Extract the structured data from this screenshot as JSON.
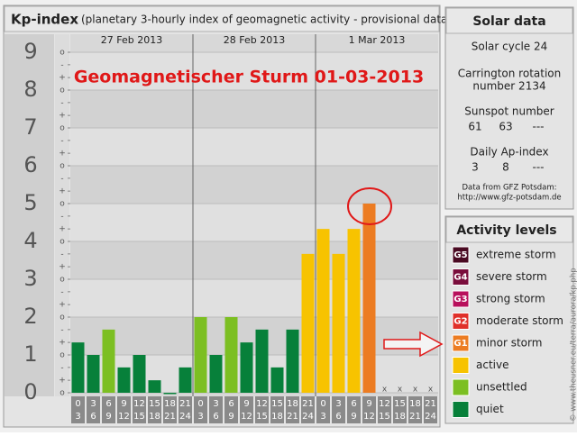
{
  "chart_data": {
    "type": "bar",
    "title": "Kp-index",
    "subtitle": "(planetary 3-hourly index of geomagnetic activity - provisional data)",
    "annotation": "Geomagnetischer Sturm 01-03-2013",
    "dates": [
      "27 Feb 2013",
      "28 Feb 2013",
      "1 Mar 2013"
    ],
    "categories": [
      [
        "0",
        "3"
      ],
      [
        "3",
        "6"
      ],
      [
        "6",
        "9"
      ],
      [
        "9",
        "12"
      ],
      [
        "12",
        "15"
      ],
      [
        "15",
        "18"
      ],
      [
        "18",
        "21"
      ],
      [
        "21",
        "24"
      ],
      [
        "0",
        "3"
      ],
      [
        "3",
        "6"
      ],
      [
        "6",
        "9"
      ],
      [
        "9",
        "12"
      ],
      [
        "12",
        "15"
      ],
      [
        "15",
        "18"
      ],
      [
        "18",
        "21"
      ],
      [
        "21",
        "24"
      ],
      [
        "0",
        "3"
      ],
      [
        "3",
        "6"
      ],
      [
        "6",
        "9"
      ],
      [
        "9",
        "12"
      ],
      [
        "12",
        "15"
      ],
      [
        "15",
        "18"
      ],
      [
        "18",
        "21"
      ],
      [
        "21",
        "24"
      ]
    ],
    "values": [
      1.33,
      1,
      1.67,
      0.67,
      1,
      0.33,
      0,
      0.67,
      2,
      1,
      2,
      1.33,
      1.67,
      0.67,
      1.67,
      3.67,
      4.33,
      3.67,
      4.33,
      5,
      null,
      null,
      null,
      null
    ],
    "colors": [
      "#07803a",
      "#07803a",
      "#7cbf22",
      "#07803a",
      "#07803a",
      "#07803a",
      "#07803a",
      "#07803a",
      "#7cbf22",
      "#07803a",
      "#7cbf22",
      "#07803a",
      "#07803a",
      "#07803a",
      "#07803a",
      "#f7c300",
      "#f7c300",
      "#f7c300",
      "#f7c300",
      "#ec7c22",
      null,
      null,
      null,
      null
    ],
    "missing_label": "x",
    "ylim": [
      0,
      9
    ],
    "yticks": [
      0,
      1,
      2,
      3,
      4,
      5,
      6,
      7,
      8,
      9
    ],
    "minor_ticks": [
      {
        "value": 0,
        "label": "o"
      },
      {
        "value": 0.33,
        "label": "+"
      },
      {
        "value": 0.67,
        "label": "-"
      },
      {
        "value": 1,
        "label": "o"
      },
      {
        "value": 1.33,
        "label": "+"
      },
      {
        "value": 1.67,
        "label": "-"
      },
      {
        "value": 2,
        "label": "o"
      },
      {
        "value": 2.33,
        "label": "+"
      },
      {
        "value": 2.67,
        "label": "-"
      },
      {
        "value": 3,
        "label": "o"
      },
      {
        "value": 3.33,
        "label": "+"
      },
      {
        "value": 3.67,
        "label": "-"
      },
      {
        "value": 4,
        "label": "o"
      },
      {
        "value": 4.33,
        "label": "+"
      },
      {
        "value": 4.67,
        "label": "-"
      },
      {
        "value": 5,
        "label": "o"
      },
      {
        "value": 5.33,
        "label": "+"
      },
      {
        "value": 5.67,
        "label": "-"
      },
      {
        "value": 6,
        "label": "o"
      },
      {
        "value": 6.33,
        "label": "+"
      },
      {
        "value": 6.67,
        "label": "-"
      },
      {
        "value": 7,
        "label": "o"
      },
      {
        "value": 7.33,
        "label": "+"
      },
      {
        "value": 7.67,
        "label": "-"
      },
      {
        "value": 8,
        "label": "o"
      },
      {
        "value": 8.33,
        "label": "+"
      },
      {
        "value": 8.67,
        "label": "-"
      },
      {
        "value": 9,
        "label": "o"
      }
    ]
  },
  "solar_data": {
    "title": "Solar data",
    "cycle": "Solar cycle 24",
    "carrington": [
      "Carrington rotation",
      "number 2134"
    ],
    "sunspot_label": "Sunspot number",
    "sunspot_values": [
      "61",
      "63",
      "---"
    ],
    "ap_label": "Daily Ap-index",
    "ap_values": [
      "3",
      "8",
      "---"
    ],
    "source": [
      "Data from GFZ Potsdam:",
      "http://www.gfz-potsdam.de"
    ]
  },
  "activity_levels": {
    "title": "Activity levels",
    "items": [
      {
        "badge": "G5",
        "name": "extreme storm",
        "color": "#4a0a22"
      },
      {
        "badge": "G4",
        "name": "severe storm",
        "color": "#7a0e3c"
      },
      {
        "badge": "G3",
        "name": "strong storm",
        "color": "#b8105c"
      },
      {
        "badge": "G2",
        "name": "moderate storm",
        "color": "#e0302a"
      },
      {
        "badge": "G1",
        "name": "minor storm",
        "color": "#ec7c22"
      },
      {
        "name": "active",
        "color": "#f7c300"
      },
      {
        "name": "unsettled",
        "color": "#7cbf22"
      },
      {
        "name": "quiet",
        "color": "#07803a"
      }
    ]
  },
  "watermark": "© www.theusner.eu/terra/aurora/kp.php"
}
